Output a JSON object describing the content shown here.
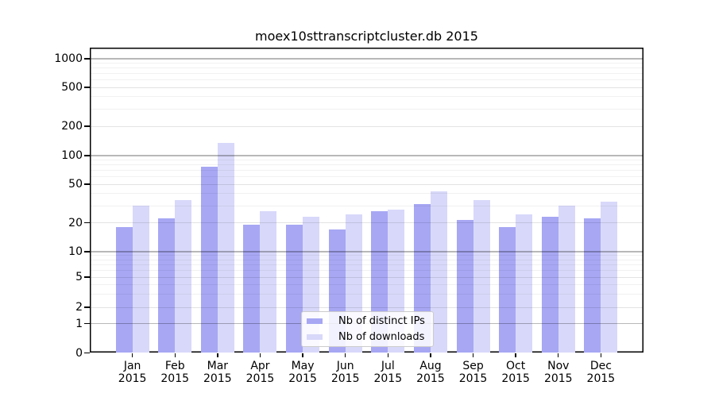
{
  "title": "moex10sttranscriptcluster.db 2015",
  "chart_data": {
    "type": "bar",
    "title": "moex10sttranscriptcluster.db 2015",
    "categories": [
      "Jan 2015",
      "Feb 2015",
      "Mar 2015",
      "Apr 2015",
      "May 2015",
      "Jun 2015",
      "Jul 2015",
      "Aug 2015",
      "Sep 2015",
      "Oct 2015",
      "Nov 2015",
      "Dec 2015"
    ],
    "x_tick_month": [
      "Jan",
      "Feb",
      "Mar",
      "Apr",
      "May",
      "Jun",
      "Jul",
      "Aug",
      "Sep",
      "Oct",
      "Nov",
      "Dec"
    ],
    "x_tick_year": "2015",
    "series": [
      {
        "name": "Nb of distinct IPs",
        "color": "#a7a7f4",
        "values": [
          18,
          22,
          75,
          19,
          19,
          17,
          26,
          31,
          21,
          18,
          23,
          22
        ]
      },
      {
        "name": "Nb of downloads",
        "color": "#d8d8fa",
        "values": [
          30,
          34,
          133,
          26,
          23,
          24,
          27,
          42,
          34,
          24,
          30,
          33
        ]
      }
    ],
    "xlabel": "",
    "ylabel": "",
    "yscale": "symlog",
    "yticks": [
      0,
      1,
      2,
      5,
      10,
      20,
      50,
      100,
      200,
      500,
      1000
    ],
    "ylim": [
      0,
      1300
    ],
    "grid": true,
    "legend_position": "lower center"
  }
}
